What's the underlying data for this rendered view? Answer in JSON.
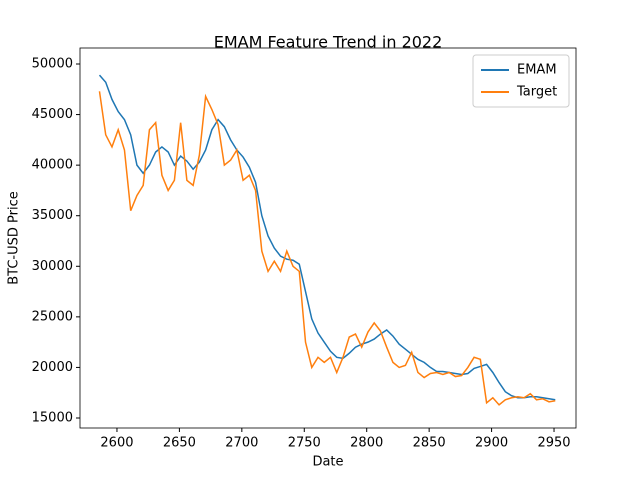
{
  "chart_data": {
    "type": "line",
    "title": "EMAM Feature Trend in 2022",
    "xlabel": "Date",
    "ylabel": "BTC-USD Price",
    "x": [
      2586,
      2591,
      2596,
      2601,
      2606,
      2611,
      2616,
      2621,
      2626,
      2631,
      2636,
      2641,
      2646,
      2651,
      2656,
      2661,
      2666,
      2671,
      2676,
      2681,
      2686,
      2691,
      2696,
      2701,
      2706,
      2711,
      2716,
      2721,
      2726,
      2731,
      2736,
      2741,
      2746,
      2751,
      2756,
      2761,
      2766,
      2771,
      2776,
      2781,
      2786,
      2791,
      2796,
      2801,
      2806,
      2811,
      2816,
      2821,
      2826,
      2831,
      2836,
      2841,
      2846,
      2851,
      2856,
      2861,
      2866,
      2871,
      2876,
      2881,
      2886,
      2891,
      2896,
      2901,
      2906,
      2911,
      2916,
      2921,
      2926,
      2931,
      2936,
      2941,
      2946,
      2951
    ],
    "series": [
      {
        "name": "EMAM",
        "color": "#1f77b4",
        "values": [
          48900,
          48200,
          46500,
          45300,
          44500,
          43000,
          40000,
          39200,
          40000,
          41300,
          41800,
          41300,
          40000,
          40900,
          40400,
          39600,
          40300,
          41500,
          43500,
          44500,
          43800,
          42500,
          41500,
          40800,
          39800,
          38300,
          35000,
          33000,
          31800,
          31000,
          30700,
          30600,
          30200,
          27500,
          24800,
          23400,
          22500,
          21600,
          21000,
          20900,
          21400,
          22000,
          22300,
          22500,
          22800,
          23300,
          23700,
          23100,
          22300,
          21800,
          21300,
          20800,
          20500,
          20000,
          19600,
          19600,
          19500,
          19400,
          19300,
          19400,
          19900,
          20100,
          20300,
          19500,
          18500,
          17600,
          17200,
          17000,
          17000,
          17100,
          17100,
          17000,
          16900,
          16800
        ]
      },
      {
        "name": "Target",
        "color": "#ff7f0e",
        "values": [
          47300,
          43000,
          41800,
          43500,
          41500,
          35500,
          37000,
          38000,
          43500,
          44200,
          39000,
          37500,
          38500,
          44200,
          38500,
          38000,
          41000,
          46800,
          45500,
          44000,
          40000,
          40500,
          41500,
          38500,
          39000,
          37500,
          31500,
          29500,
          30500,
          29500,
          31500,
          30000,
          29500,
          22500,
          20000,
          21000,
          20500,
          21000,
          19500,
          21000,
          23000,
          23300,
          22000,
          23500,
          24400,
          23600,
          22000,
          20500,
          20000,
          20200,
          21500,
          19500,
          19000,
          19400,
          19500,
          19300,
          19500,
          19100,
          19200,
          20000,
          21000,
          20800,
          16500,
          17000,
          16300,
          16800,
          17000,
          17100,
          17000,
          17400,
          16800,
          16900,
          16600,
          16700
        ]
      }
    ],
    "xlim": [
      2570.4,
      2967.6
    ],
    "xticks": [
      2600,
      2650,
      2700,
      2750,
      2800,
      2850,
      2900,
      2950
    ],
    "ylim": [
      14011,
      51582
    ],
    "yticks": [
      15000,
      20000,
      25000,
      30000,
      35000,
      40000,
      45000,
      50000
    ],
    "legend": "upper right"
  }
}
